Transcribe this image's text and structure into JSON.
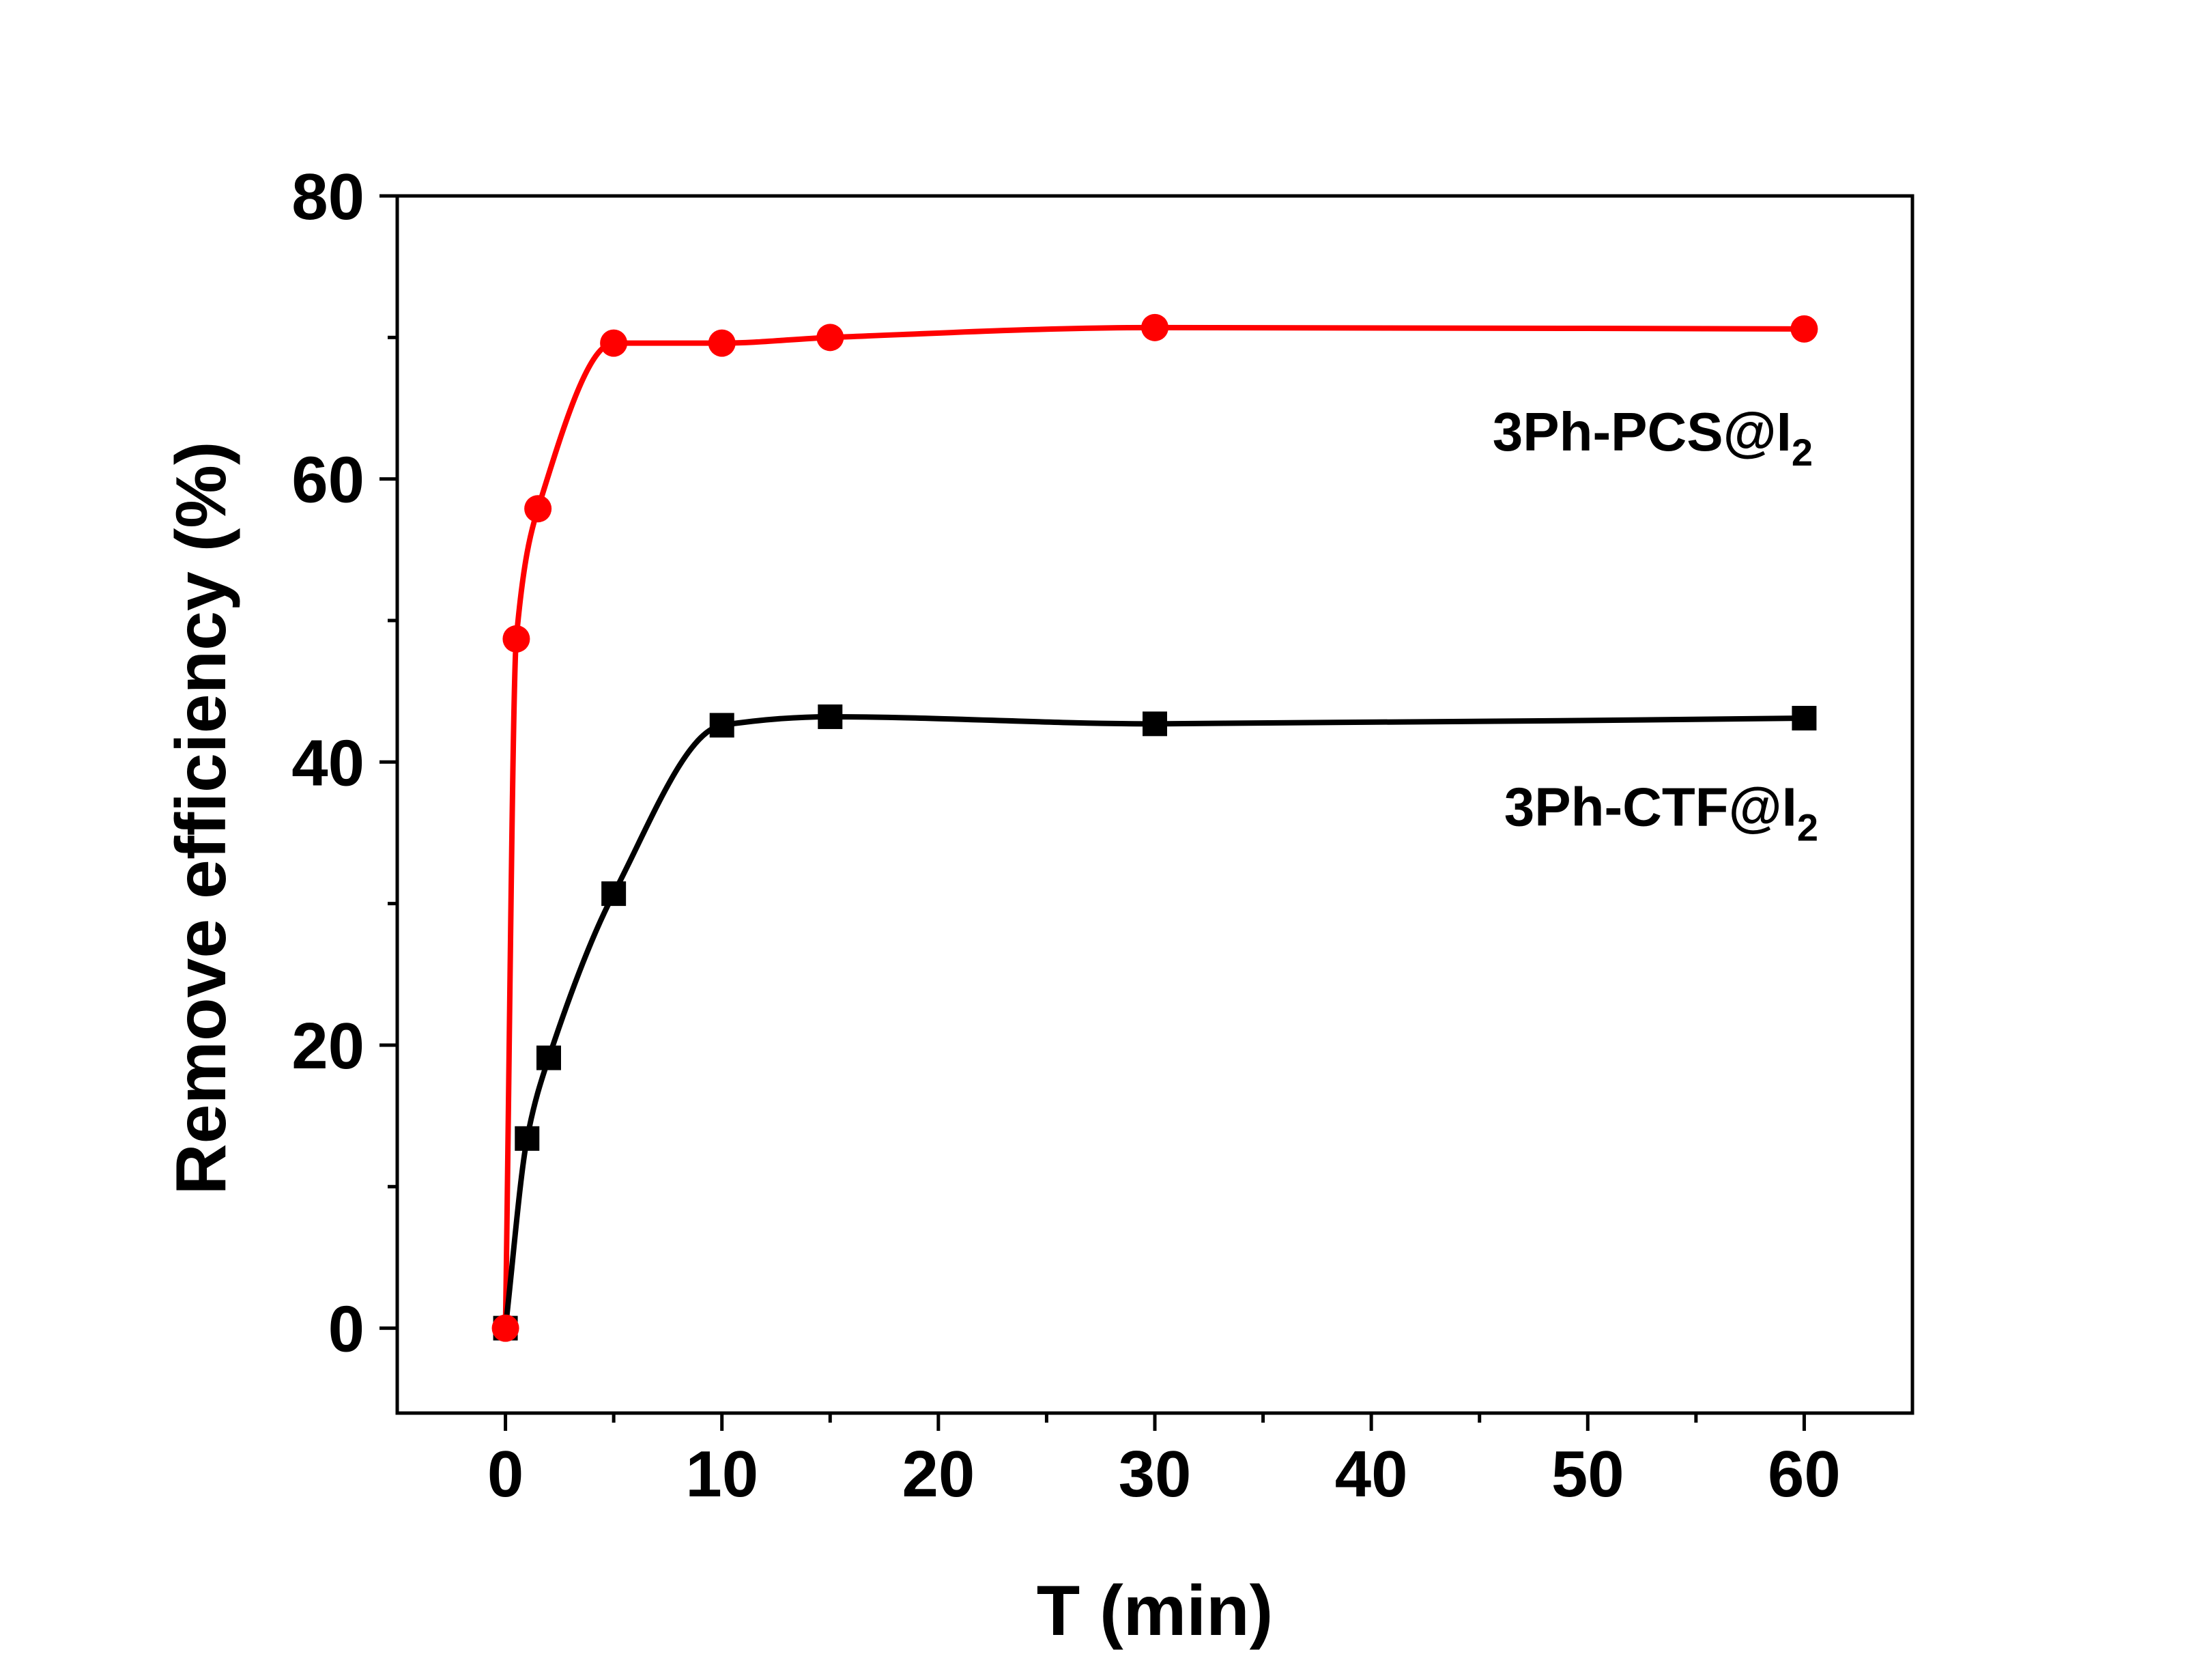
{
  "chart_data": {
    "type": "line",
    "xlabel": "T (min)",
    "ylabel": "Remove efficiency (%)",
    "xlim": [
      -5,
      65
    ],
    "ylim": [
      -6,
      80
    ],
    "xticks": [
      0,
      10,
      20,
      30,
      40,
      50,
      60
    ],
    "yticks": [
      0,
      20,
      40,
      60,
      80
    ],
    "grid": false,
    "series": [
      {
        "name": "3Ph-PCS@I",
        "name_sub": "2",
        "color": "#ff0000",
        "marker": "circle",
        "x": [
          0,
          0.5,
          1.5,
          5,
          10,
          15,
          30,
          60
        ],
        "y": [
          0,
          48.7,
          57.9,
          69.6,
          69.6,
          70.0,
          70.7,
          70.6
        ]
      },
      {
        "name": "3Ph-CTF@I",
        "name_sub": "2",
        "color": "#000000",
        "marker": "square",
        "x": [
          0,
          1,
          2,
          5,
          10,
          15,
          30,
          60
        ],
        "y": [
          0,
          13.4,
          19.1,
          30.7,
          42.6,
          43.2,
          42.7,
          43.1
        ]
      }
    ]
  }
}
